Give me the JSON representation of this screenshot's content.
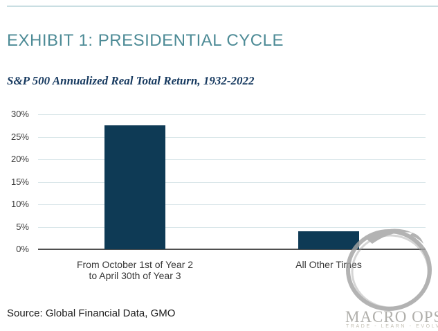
{
  "page": {
    "title": "EXHIBIT 1: PRESIDENTIAL CYCLE",
    "subtitle": "S&P 500 Annualized Real Total Return, 1932-2022",
    "source": "Source: Global Financial Data, GMO"
  },
  "logo": {
    "name": "MACRO OPS",
    "tagline": "TRADE - LEARN - EVOLVE",
    "mark": "enso-brush-circle"
  },
  "colors": {
    "accent_teal": "#4d8b96",
    "subtitle_navy": "#16395f",
    "bar_navy": "#0e3a55",
    "gridline": "#d9e6e9",
    "axis_line": "#4f4f4f",
    "top_rule": "#c9dee2",
    "axis_text": "#3d3d3d",
    "logo_gray": "#a3a3a3",
    "logo_text_gray": "#b0afab",
    "logo_tagline_gray": "#c4c0b4"
  },
  "chart_data": {
    "type": "bar",
    "title": "S&P 500 Annualized Real Total Return, 1932-2022",
    "categories": [
      [
        "From October 1st of Year 2",
        "to April 30th of Year 3"
      ],
      [
        "All Other Times"
      ]
    ],
    "values": [
      27.5,
      4.0
    ],
    "xlabel": "",
    "ylabel": "",
    "ylim": [
      0,
      30
    ],
    "ytick_step": 5,
    "ytick_labels": [
      "0%",
      "5%",
      "10%",
      "15%",
      "20%",
      "25%",
      "30%"
    ],
    "grid": true,
    "legend": false,
    "bar_color": "#0e3a55"
  }
}
